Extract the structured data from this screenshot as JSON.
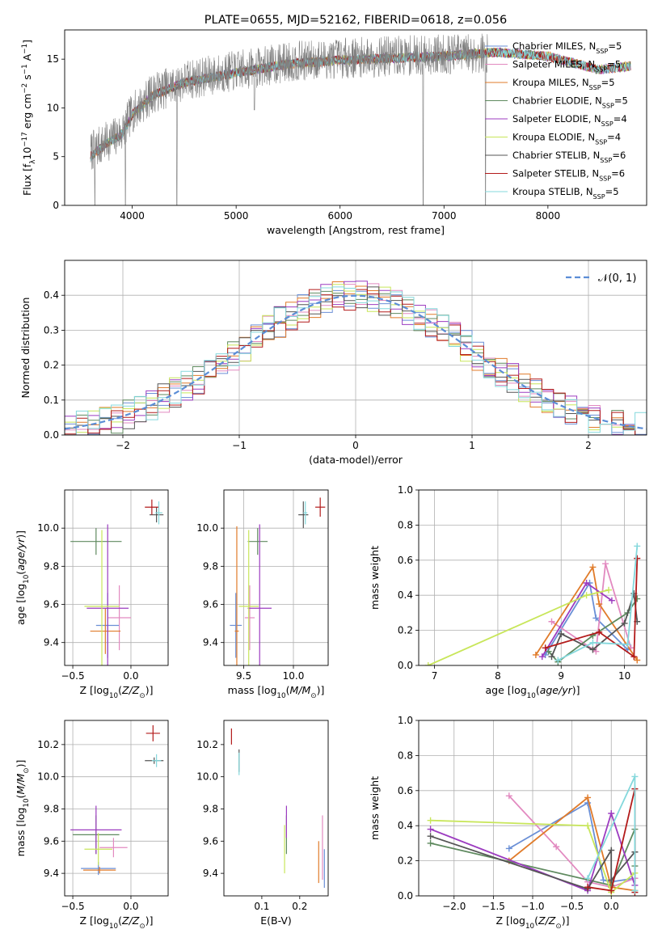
{
  "colors": [
    "#6a8fd6",
    "#e28ac0",
    "#e07b2a",
    "#5f8a5f",
    "#9c3cc0",
    "#c8e65a",
    "#555555",
    "#b31b1b",
    "#84d8dc"
  ],
  "chart_data": [
    {
      "id": "spectrum",
      "type": "line",
      "title": "PLATE=0655, MJD=52162, FIBERID=0618, z=0.056",
      "xlabel": "wavelength [Angstrom, rest frame]",
      "ylabel": "Flux [f_λ10^-17 erg cm^-2 s^-1 A^-1]",
      "xlim": [
        3350,
        8950
      ],
      "ylim": [
        0,
        18
      ],
      "xticks": [
        4000,
        5000,
        6000,
        7000,
        8000
      ],
      "yticks": [
        0,
        5,
        10,
        15
      ],
      "grid": false,
      "legend": "upper-right",
      "data_range": [
        3600,
        7420
      ],
      "continuum": [
        [
          3600,
          5.5
        ],
        [
          3750,
          6.5
        ],
        [
          3900,
          7.5
        ],
        [
          4000,
          9.5
        ],
        [
          4200,
          11.5
        ],
        [
          4500,
          12.8
        ],
        [
          5000,
          13.8
        ],
        [
          5500,
          14.7
        ],
        [
          6000,
          15.1
        ],
        [
          6500,
          15.3
        ],
        [
          7000,
          15.5
        ],
        [
          7420,
          15.6
        ]
      ],
      "dips": [
        [
          3640,
          0
        ],
        [
          3935,
          0
        ],
        [
          4430,
          0
        ],
        [
          5175,
          9.8
        ],
        [
          6800,
          0
        ],
        [
          7400,
          0
        ]
      ],
      "model_continuum": [
        [
          3600,
          5.0
        ],
        [
          3750,
          6.3
        ],
        [
          3900,
          7.3
        ],
        [
          4000,
          9.3
        ],
        [
          4200,
          11.3
        ],
        [
          4500,
          12.6
        ],
        [
          5000,
          13.6
        ],
        [
          5500,
          14.5
        ],
        [
          6000,
          14.9
        ],
        [
          6500,
          15.1
        ],
        [
          7000,
          15.3
        ],
        [
          7500,
          15.7
        ],
        [
          8000,
          15.3
        ],
        [
          8500,
          13.9
        ],
        [
          8800,
          14.3
        ]
      ],
      "legend_entries": [
        "Chabrier MILES, N_SSP=5",
        "Salpeter MILES, N_SSP=5",
        "Kroupa MILES, N_SSP=5",
        "Chabrier ELODIE, N_SSP=5",
        "Salpeter ELODIE, N_SSP=4",
        "Kroupa ELODIE, N_SSP=4",
        "Chabrier STELIB, N_SSP=6",
        "Salpeter STELIB, N_SSP=6",
        "Kroupa STELIB, N_SSP=5"
      ]
    },
    {
      "id": "residuals",
      "type": "line",
      "xlabel": "(data-model)/error",
      "ylabel": "Normed distribution",
      "xlim": [
        -2.5,
        2.5
      ],
      "ylim": [
        0,
        0.5
      ],
      "xticks": [
        -2,
        -1,
        0,
        1,
        2
      ],
      "yticks": [
        0.0,
        0.1,
        0.2,
        0.3,
        0.4
      ],
      "grid": true,
      "legend": "upper-right",
      "legend_entries": [
        "𝒩(0, 1)"
      ],
      "bin_width": 0.1,
      "gaussian": {
        "mean": 0,
        "sigma": 1
      }
    },
    {
      "id": "age_vs_Z",
      "type": "scatter",
      "xlabel": "Z [log10(Z/Z⊙)]",
      "ylabel": "age  [log10(age/yr)]",
      "xlim": [
        -0.57,
        0.32
      ],
      "ylim": [
        9.28,
        10.2
      ],
      "xticks": [
        -0.5,
        0.0
      ],
      "yticks": [
        9.4,
        9.6,
        9.8,
        10.0
      ],
      "grid": true,
      "points": [
        {
          "x": -0.2,
          "y": 9.49,
          "xerr": 0.1,
          "yerr": 0.17
        },
        {
          "x": -0.1,
          "y": 9.53,
          "xerr": 0.1,
          "yerr": 0.17
        },
        {
          "x": -0.22,
          "y": 9.46,
          "xerr": 0.13,
          "yerr": 0.12
        },
        {
          "x": -0.3,
          "y": 9.93,
          "xerr": 0.22,
          "yerr": 0.07
        },
        {
          "x": -0.2,
          "y": 9.58,
          "xerr": 0.18,
          "yerr": 0.44
        },
        {
          "x": -0.25,
          "y": 9.59,
          "xerr": 0.15,
          "yerr": 0.4
        },
        {
          "x": 0.22,
          "y": 10.07,
          "xerr": 0.06,
          "yerr": 0.04
        },
        {
          "x": 0.18,
          "y": 10.11,
          "xerr": 0.06,
          "yerr": 0.04
        },
        {
          "x": 0.24,
          "y": 10.08,
          "xerr": 0.03,
          "yerr": 0.06
        }
      ]
    },
    {
      "id": "age_vs_mass",
      "type": "scatter",
      "xlabel": "mass [log10(M/M⊙)]",
      "ylabel": "",
      "xlim": [
        9.3,
        10.35
      ],
      "ylim": [
        9.28,
        10.2
      ],
      "xticks": [
        9.5,
        10.0
      ],
      "yticks": [
        9.4,
        9.6,
        9.8,
        10.0
      ],
      "grid": true,
      "points": [
        {
          "x": 9.42,
          "y": 9.49,
          "xerr": 0.06,
          "yerr": 0.17
        },
        {
          "x": 9.56,
          "y": 9.53,
          "xerr": 0.05,
          "yerr": 0.17
        },
        {
          "x": 9.43,
          "y": 9.46,
          "xerr": 0.02,
          "yerr": 0.55
        },
        {
          "x": 9.64,
          "y": 9.93,
          "xerr": 0.1,
          "yerr": 0.07
        },
        {
          "x": 9.66,
          "y": 9.58,
          "xerr": 0.12,
          "yerr": 0.44
        },
        {
          "x": 9.55,
          "y": 9.59,
          "xerr": 0.1,
          "yerr": 0.4
        },
        {
          "x": 10.1,
          "y": 10.07,
          "xerr": 0.05,
          "yerr": 0.07
        },
        {
          "x": 10.27,
          "y": 10.11,
          "xerr": 0.05,
          "yerr": 0.05
        },
        {
          "x": 10.12,
          "y": 10.08,
          "xerr": 0.02,
          "yerr": 0.06
        }
      ]
    },
    {
      "id": "weight_vs_age",
      "type": "line",
      "xlabel": "age  [log10(age/yr)]",
      "ylabel": "mass weight",
      "xlim": [
        6.75,
        10.35
      ],
      "ylim": [
        0,
        1
      ],
      "xticks": [
        7,
        8,
        9,
        10
      ],
      "yticks": [
        0.0,
        0.2,
        0.4,
        0.6,
        0.8,
        1.0
      ],
      "grid": true,
      "series": [
        {
          "x": [
            8.75,
            9.45,
            9.55,
            10.05,
            10.1
          ],
          "y": [
            0.06,
            0.47,
            0.27,
            0.09,
            0.1
          ]
        },
        {
          "x": [
            8.85,
            9.55,
            9.7,
            10.1
          ],
          "y": [
            0.25,
            0.08,
            0.58,
            0.1
          ]
        },
        {
          "x": [
            8.6,
            9.5,
            9.6,
            10.2
          ],
          "y": [
            0.06,
            0.56,
            0.35,
            0.03
          ]
        },
        {
          "x": [
            8.8,
            8.95,
            9.5,
            10.05,
            10.2
          ],
          "y": [
            0.08,
            0.02,
            0.17,
            0.3,
            0.38
          ]
        },
        {
          "x": [
            8.7,
            9.4,
            9.8
          ],
          "y": [
            0.05,
            0.47,
            0.37
          ]
        },
        {
          "x": [
            6.9,
            9.4,
            9.75
          ],
          "y": [
            0.0,
            0.4,
            0.43
          ]
        },
        {
          "x": [
            8.85,
            9.0,
            9.5,
            10.0,
            10.15,
            10.2
          ],
          "y": [
            0.05,
            0.18,
            0.09,
            0.24,
            0.41,
            0.25
          ]
        },
        {
          "x": [
            8.75,
            9.6,
            10.15,
            10.2
          ],
          "y": [
            0.1,
            0.19,
            0.05,
            0.61
          ]
        },
        {
          "x": [
            8.95,
            9.5,
            10.05,
            10.2
          ],
          "y": [
            0.03,
            0.13,
            0.12,
            0.68
          ]
        }
      ]
    },
    {
      "id": "mass_vs_Z",
      "type": "scatter",
      "xlabel": "Z [log10(Z/Z⊙)]",
      "ylabel": "mass [log10(M/M⊙)]",
      "xlim": [
        -0.57,
        0.32
      ],
      "ylim": [
        9.26,
        10.35
      ],
      "xticks": [
        -0.5,
        0.0
      ],
      "yticks": [
        9.4,
        9.6,
        9.8,
        10.0,
        10.2
      ],
      "grid": true,
      "points": [
        {
          "x": -0.28,
          "y": 9.43,
          "xerr": 0.15,
          "yerr": 0.04
        },
        {
          "x": -0.15,
          "y": 9.56,
          "xerr": 0.12,
          "yerr": 0.06
        },
        {
          "x": -0.27,
          "y": 9.42,
          "xerr": 0.14,
          "yerr": 0.02
        },
        {
          "x": -0.3,
          "y": 9.64,
          "xerr": 0.2,
          "yerr": 0.12
        },
        {
          "x": -0.3,
          "y": 9.67,
          "xerr": 0.22,
          "yerr": 0.15
        },
        {
          "x": -0.28,
          "y": 9.55,
          "xerr": 0.12,
          "yerr": 0.1
        },
        {
          "x": 0.2,
          "y": 10.1,
          "xerr": 0.08,
          "yerr": 0.02
        },
        {
          "x": 0.19,
          "y": 10.27,
          "xerr": 0.06,
          "yerr": 0.05
        },
        {
          "x": 0.22,
          "y": 10.1,
          "xerr": 0.04,
          "yerr": 0.04
        }
      ]
    },
    {
      "id": "mass_vs_ebv",
      "type": "scatter",
      "xlabel": "E(B-V)",
      "ylabel": "",
      "xlim": [
        0.0,
        0.275
      ],
      "ylim": [
        9.26,
        10.35
      ],
      "xticks": [
        0.1,
        0.2
      ],
      "yticks": [
        9.4,
        9.6,
        9.8,
        10.0,
        10.2
      ],
      "grid": false,
      "points": [
        {
          "x": 0.265,
          "y": 9.43,
          "xerr": 0,
          "yerr": 0.12
        },
        {
          "x": 0.26,
          "y": 9.56,
          "xerr": 0,
          "yerr": 0.2
        },
        {
          "x": 0.25,
          "y": 9.47,
          "xerr": 0,
          "yerr": 0.13
        },
        {
          "x": 0.165,
          "y": 9.64,
          "xerr": 0,
          "yerr": 0.12
        },
        {
          "x": 0.165,
          "y": 9.72,
          "xerr": 0,
          "yerr": 0.1
        },
        {
          "x": 0.16,
          "y": 9.55,
          "xerr": 0,
          "yerr": 0.15
        },
        {
          "x": 0.04,
          "y": 10.1,
          "xerr": 0,
          "yerr": 0.07
        },
        {
          "x": 0.02,
          "y": 10.25,
          "xerr": 0,
          "yerr": 0.05
        },
        {
          "x": 0.04,
          "y": 10.08,
          "xerr": 0,
          "yerr": 0.07
        }
      ]
    },
    {
      "id": "weight_vs_Z",
      "type": "line",
      "xlabel": "Z [log10(Z/Z⊙)]",
      "ylabel": "mass weight",
      "xlim": [
        -2.45,
        0.45
      ],
      "ylim": [
        0,
        1
      ],
      "xticks": [
        -2.0,
        -1.5,
        -1.0,
        -0.5,
        0.0
      ],
      "yticks": [
        0.0,
        0.2,
        0.4,
        0.6,
        0.8,
        1.0
      ],
      "grid": true,
      "series": [
        {
          "x": [
            -1.3,
            -0.3,
            -0.1,
            0.0,
            0.3
          ],
          "y": [
            0.27,
            0.53,
            0.09,
            0.08,
            0.1
          ]
        },
        {
          "x": [
            -1.3,
            -0.7,
            -0.3,
            0.0,
            0.3
          ],
          "y": [
            0.57,
            0.28,
            0.08,
            0.05,
            0.1
          ]
        },
        {
          "x": [
            -1.3,
            -0.3,
            0.0,
            0.3
          ],
          "y": [
            0.2,
            0.56,
            0.05,
            0.03
          ]
        },
        {
          "x": [
            -2.3,
            0.0,
            0.3,
            0.3
          ],
          "y": [
            0.3,
            0.06,
            0.38,
            0.17
          ]
        },
        {
          "x": [
            -2.3,
            -0.3,
            0.0,
            0.3
          ],
          "y": [
            0.38,
            0.03,
            0.47,
            0.06
          ]
        },
        {
          "x": [
            -2.3,
            -0.3,
            0.0,
            0.3
          ],
          "y": [
            0.43,
            0.4,
            0.02,
            0.13
          ]
        },
        {
          "x": [
            -2.3,
            -0.3,
            0.0,
            0.0,
            0.3
          ],
          "y": [
            0.34,
            0.04,
            0.26,
            0.09,
            0.25
          ]
        },
        {
          "x": [
            -0.3,
            0.0,
            0.3,
            0.3
          ],
          "y": [
            0.05,
            0.03,
            0.61,
            0.02
          ]
        },
        {
          "x": [
            -0.3,
            0.3,
            0.3
          ],
          "y": [
            0.1,
            0.68,
            0.03
          ]
        }
      ]
    }
  ]
}
